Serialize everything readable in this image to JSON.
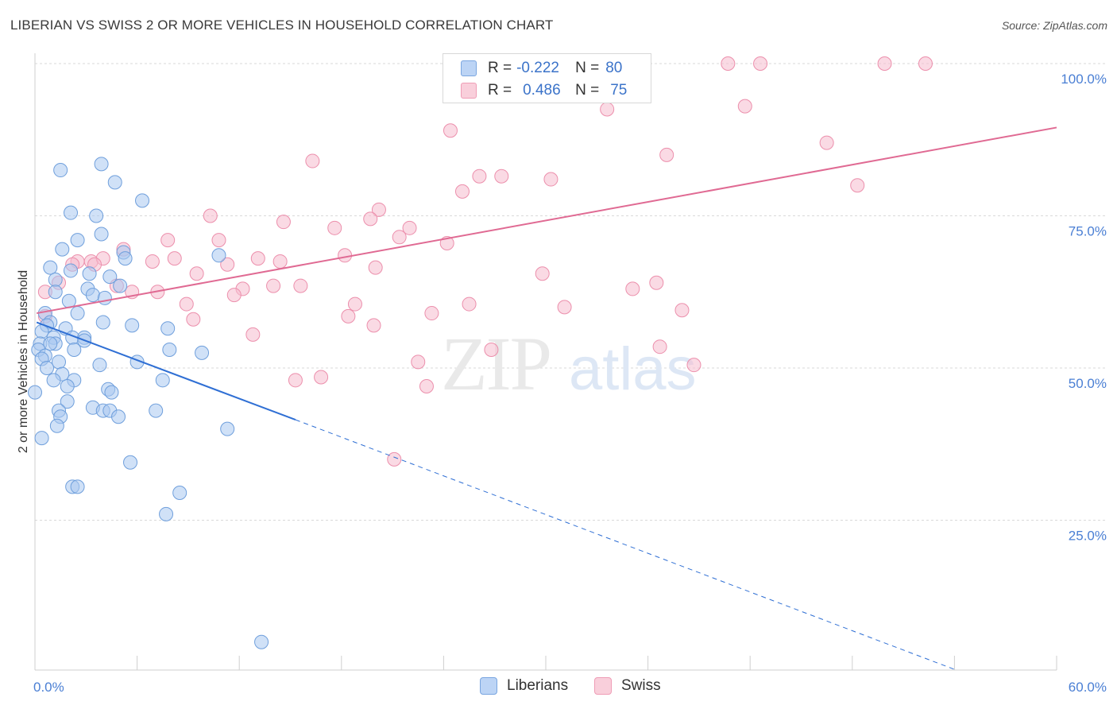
{
  "title": "LIBERIAN VS SWISS 2 OR MORE VEHICLES IN HOUSEHOLD CORRELATION CHART",
  "source": "Source: ZipAtlas.com",
  "legend": {
    "row1": {
      "r_label": "R =",
      "r_value": "-0.222",
      "n_label": "N =",
      "n_value": "80"
    },
    "row2": {
      "r_label": "R =",
      "r_value": "0.486",
      "n_label": "N =",
      "n_value": "75"
    }
  },
  "colors": {
    "liberians_fill": "#a9c8f0",
    "liberians_stroke": "#6f9fdc",
    "liberians_line": "#2f6fd4",
    "swiss_fill": "#f6bccd",
    "swiss_stroke": "#ec8fac",
    "swiss_line": "#e06a93",
    "axis_text": "#4a7fd4"
  },
  "chart_data": {
    "type": "scatter",
    "title": "LIBERIAN VS SWISS 2 OR MORE VEHICLES IN HOUSEHOLD CORRELATION CHART",
    "xlabel": "",
    "ylabel": "2 or more Vehicles in Household",
    "xlim": [
      0,
      60
    ],
    "ylim": [
      0,
      102
    ],
    "x_tick_labels": [
      "0.0%",
      "60.0%"
    ],
    "y_ticks": [
      25,
      50,
      75,
      100
    ],
    "y_tick_labels": [
      "25.0%",
      "50.0%",
      "75.0%",
      "100.0%"
    ],
    "grid": "horizontal dashed",
    "legend_position": "bottom",
    "series": [
      {
        "name": "Liberians",
        "trend": {
          "x0": 0.1,
          "y0": 57.5,
          "x1": 15.3,
          "y1": 41.5,
          "dashed_to_x": 54,
          "dashed_to_y": 0.5
        },
        "points": [
          [
            1.5,
            82.5
          ],
          [
            3.9,
            83.5
          ],
          [
            4.7,
            80.5
          ],
          [
            6.3,
            77.5
          ],
          [
            2.1,
            75.5
          ],
          [
            3.6,
            75
          ],
          [
            2.5,
            71
          ],
          [
            3.9,
            72
          ],
          [
            1.6,
            69.5
          ],
          [
            5.2,
            69
          ],
          [
            10.8,
            68.5
          ],
          [
            5.3,
            68
          ],
          [
            0.9,
            66.5
          ],
          [
            2.1,
            66
          ],
          [
            3.2,
            65.5
          ],
          [
            1.2,
            64.5
          ],
          [
            4.4,
            65
          ],
          [
            5.0,
            63.5
          ],
          [
            3.1,
            63
          ],
          [
            3.4,
            62
          ],
          [
            1.2,
            62.5
          ],
          [
            4.1,
            61.5
          ],
          [
            2.0,
            61
          ],
          [
            0.6,
            59
          ],
          [
            2.5,
            59
          ],
          [
            0.9,
            57.5
          ],
          [
            0.7,
            57
          ],
          [
            4.0,
            57.5
          ],
          [
            5.7,
            57
          ],
          [
            1.8,
            56.5
          ],
          [
            7.8,
            56.5
          ],
          [
            0.4,
            56
          ],
          [
            1.1,
            55
          ],
          [
            2.2,
            55
          ],
          [
            2.9,
            55
          ],
          [
            0.3,
            54
          ],
          [
            1.2,
            54
          ],
          [
            2.9,
            54.5
          ],
          [
            0.9,
            54
          ],
          [
            0.2,
            53
          ],
          [
            2.3,
            53
          ],
          [
            7.9,
            53
          ],
          [
            9.8,
            52.5
          ],
          [
            0.6,
            52
          ],
          [
            0.4,
            51.5
          ],
          [
            6.0,
            51
          ],
          [
            1.4,
            51
          ],
          [
            3.8,
            50.5
          ],
          [
            0.7,
            50
          ],
          [
            1.6,
            49
          ],
          [
            1.1,
            48
          ],
          [
            2.3,
            48
          ],
          [
            7.5,
            48
          ],
          [
            1.9,
            47
          ],
          [
            4.3,
            46.5
          ],
          [
            4.5,
            46
          ],
          [
            0.0,
            46
          ],
          [
            1.9,
            44.5
          ],
          [
            3.4,
            43.5
          ],
          [
            7.1,
            43
          ],
          [
            4.0,
            43
          ],
          [
            4.4,
            43
          ],
          [
            1.4,
            43
          ],
          [
            4.9,
            42
          ],
          [
            1.5,
            42
          ],
          [
            1.3,
            40.5
          ],
          [
            11.3,
            40
          ],
          [
            0.4,
            38.5
          ],
          [
            5.6,
            34.5
          ],
          [
            2.2,
            30.5
          ],
          [
            2.5,
            30.5
          ],
          [
            8.5,
            29.5
          ],
          [
            7.7,
            26
          ],
          [
            13.3,
            5
          ]
        ]
      },
      {
        "name": "Swiss",
        "trend": {
          "x0": 0.1,
          "y0": 59,
          "x1": 60,
          "y1": 89.5
        },
        "points": [
          [
            32.1,
            100
          ],
          [
            34.3,
            100
          ],
          [
            40.7,
            100
          ],
          [
            42.6,
            100
          ],
          [
            49.9,
            100
          ],
          [
            52.3,
            100
          ],
          [
            35.5,
            97
          ],
          [
            33.6,
            92.5
          ],
          [
            41.7,
            93
          ],
          [
            24.4,
            89
          ],
          [
            46.5,
            87
          ],
          [
            37.1,
            85
          ],
          [
            16.3,
            84
          ],
          [
            26.1,
            81.5
          ],
          [
            27.4,
            81.5
          ],
          [
            30.3,
            81
          ],
          [
            48.3,
            80
          ],
          [
            25.1,
            79
          ],
          [
            10.3,
            75
          ],
          [
            20.2,
            76
          ],
          [
            14.6,
            74
          ],
          [
            19.7,
            74.5
          ],
          [
            17.6,
            73
          ],
          [
            22.0,
            73
          ],
          [
            21.4,
            71.5
          ],
          [
            7.8,
            71
          ],
          [
            10.8,
            71
          ],
          [
            24.2,
            70.5
          ],
          [
            18.2,
            68.5
          ],
          [
            5.2,
            69.5
          ],
          [
            13.1,
            68
          ],
          [
            8.2,
            68
          ],
          [
            6.9,
            67.5
          ],
          [
            2.5,
            67.5
          ],
          [
            3.3,
            67.5
          ],
          [
            4.0,
            68
          ],
          [
            3.5,
            67
          ],
          [
            2.2,
            67
          ],
          [
            14.4,
            67.5
          ],
          [
            11.3,
            67
          ],
          [
            20.0,
            66.5
          ],
          [
            29.8,
            65.5
          ],
          [
            9.5,
            65.5
          ],
          [
            1.4,
            64
          ],
          [
            36.5,
            64
          ],
          [
            14.0,
            63.5
          ],
          [
            15.6,
            63.5
          ],
          [
            35.1,
            63
          ],
          [
            4.8,
            63.5
          ],
          [
            5.7,
            62.5
          ],
          [
            7.2,
            62.5
          ],
          [
            12.2,
            63
          ],
          [
            0.6,
            62.5
          ],
          [
            11.7,
            62
          ],
          [
            18.8,
            60.5
          ],
          [
            8.9,
            60.5
          ],
          [
            25.5,
            60.5
          ],
          [
            31.1,
            60
          ],
          [
            38.0,
            59.5
          ],
          [
            23.3,
            59
          ],
          [
            18.4,
            58.5
          ],
          [
            9.3,
            58
          ],
          [
            0.6,
            58.5
          ],
          [
            19.9,
            57
          ],
          [
            12.8,
            55.5
          ],
          [
            36.7,
            53.5
          ],
          [
            26.8,
            53
          ],
          [
            22.5,
            51
          ],
          [
            38.7,
            50.5
          ],
          [
            16.8,
            48.5
          ],
          [
            15.3,
            48
          ],
          [
            23.0,
            47
          ],
          [
            21.1,
            35
          ]
        ]
      }
    ]
  },
  "bottom_legend": {
    "liberians": "Liberians",
    "swiss": "Swiss"
  },
  "watermark": {
    "zip": "ZIP",
    "atlas": "atlas"
  }
}
